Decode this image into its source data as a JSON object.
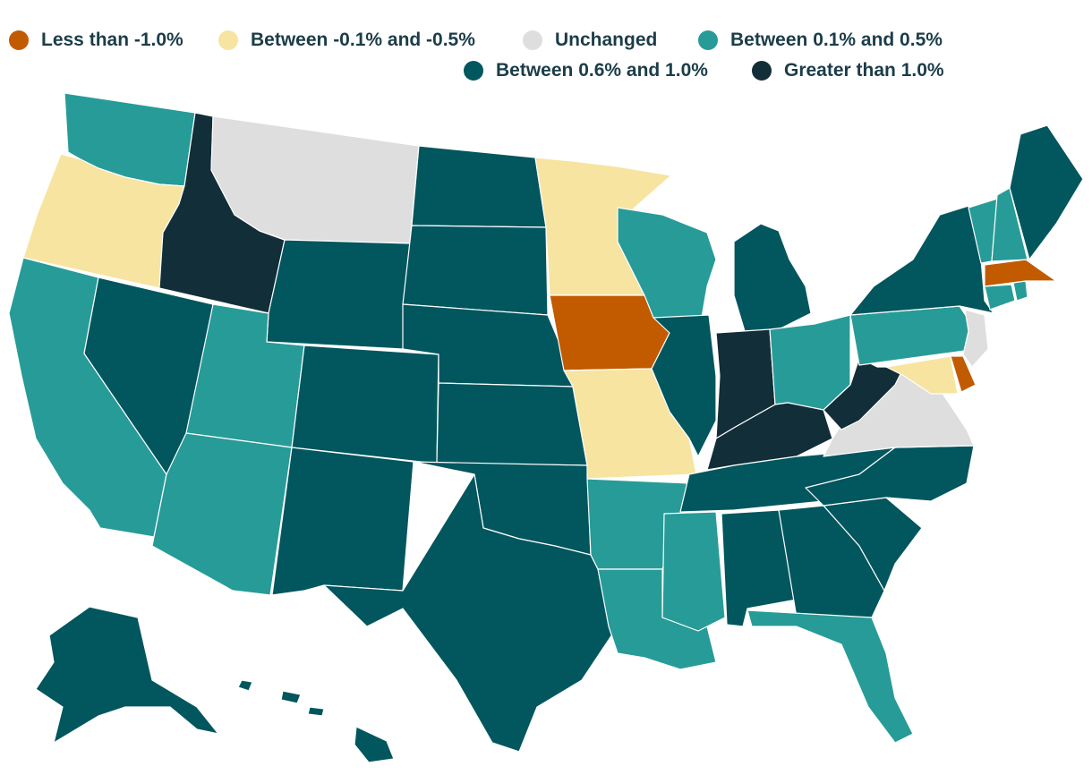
{
  "legend": [
    {
      "label": "Less than -1.0%",
      "color": "#c25a00"
    },
    {
      "label": "Between -0.1% and -0.5%",
      "color": "#f6e4a0"
    },
    {
      "label": "Unchanged",
      "color": "#dedede"
    },
    {
      "label": "Between 0.1% and 0.5%",
      "color": "#279b97"
    },
    {
      "label": "Between 0.6% and 1.0%",
      "color": "#02565e"
    },
    {
      "label": "Greater than 1.0%",
      "color": "#122e38"
    }
  ],
  "states": [
    {
      "name": "Washington",
      "category": 3
    },
    {
      "name": "Oregon",
      "category": 1
    },
    {
      "name": "California",
      "category": 3
    },
    {
      "name": "Idaho",
      "category": 5
    },
    {
      "name": "Nevada",
      "category": 4
    },
    {
      "name": "Montana",
      "category": 2
    },
    {
      "name": "Wyoming",
      "category": 4
    },
    {
      "name": "Utah",
      "category": 3
    },
    {
      "name": "Arizona",
      "category": 3
    },
    {
      "name": "Colorado",
      "category": 4
    },
    {
      "name": "New Mexico",
      "category": 4
    },
    {
      "name": "North Dakota",
      "category": 4
    },
    {
      "name": "South Dakota",
      "category": 4
    },
    {
      "name": "Nebraska",
      "category": 4
    },
    {
      "name": "Kansas",
      "category": 4
    },
    {
      "name": "Oklahoma",
      "category": 4
    },
    {
      "name": "Texas",
      "category": 4
    },
    {
      "name": "Minnesota",
      "category": 1
    },
    {
      "name": "Iowa",
      "category": 0
    },
    {
      "name": "Missouri",
      "category": 1
    },
    {
      "name": "Arkansas",
      "category": 3
    },
    {
      "name": "Louisiana",
      "category": 3
    },
    {
      "name": "Wisconsin",
      "category": 3
    },
    {
      "name": "Illinois",
      "category": 4
    },
    {
      "name": "Michigan",
      "category": 4
    },
    {
      "name": "Indiana",
      "category": 5
    },
    {
      "name": "Ohio",
      "category": 3
    },
    {
      "name": "Kentucky",
      "category": 5
    },
    {
      "name": "Tennessee",
      "category": 4
    },
    {
      "name": "Mississippi",
      "category": 3
    },
    {
      "name": "Alabama",
      "category": 4
    },
    {
      "name": "Georgia",
      "category": 4
    },
    {
      "name": "Florida",
      "category": 3
    },
    {
      "name": "South Carolina",
      "category": 4
    },
    {
      "name": "North Carolina",
      "category": 4
    },
    {
      "name": "Virginia",
      "category": 2
    },
    {
      "name": "West Virginia",
      "category": 5
    },
    {
      "name": "Pennsylvania",
      "category": 3
    },
    {
      "name": "New York",
      "category": 4
    },
    {
      "name": "Maryland",
      "category": 1
    },
    {
      "name": "Delaware",
      "category": 0
    },
    {
      "name": "New Jersey",
      "category": 2
    },
    {
      "name": "Connecticut",
      "category": 3
    },
    {
      "name": "Rhode Island",
      "category": 3
    },
    {
      "name": "Massachusetts",
      "category": 0
    },
    {
      "name": "Vermont",
      "category": 3
    },
    {
      "name": "New Hampshire",
      "category": 3
    },
    {
      "name": "Maine",
      "category": 4
    },
    {
      "name": "Alaska",
      "category": 4
    },
    {
      "name": "Hawaii",
      "category": 4
    }
  ]
}
